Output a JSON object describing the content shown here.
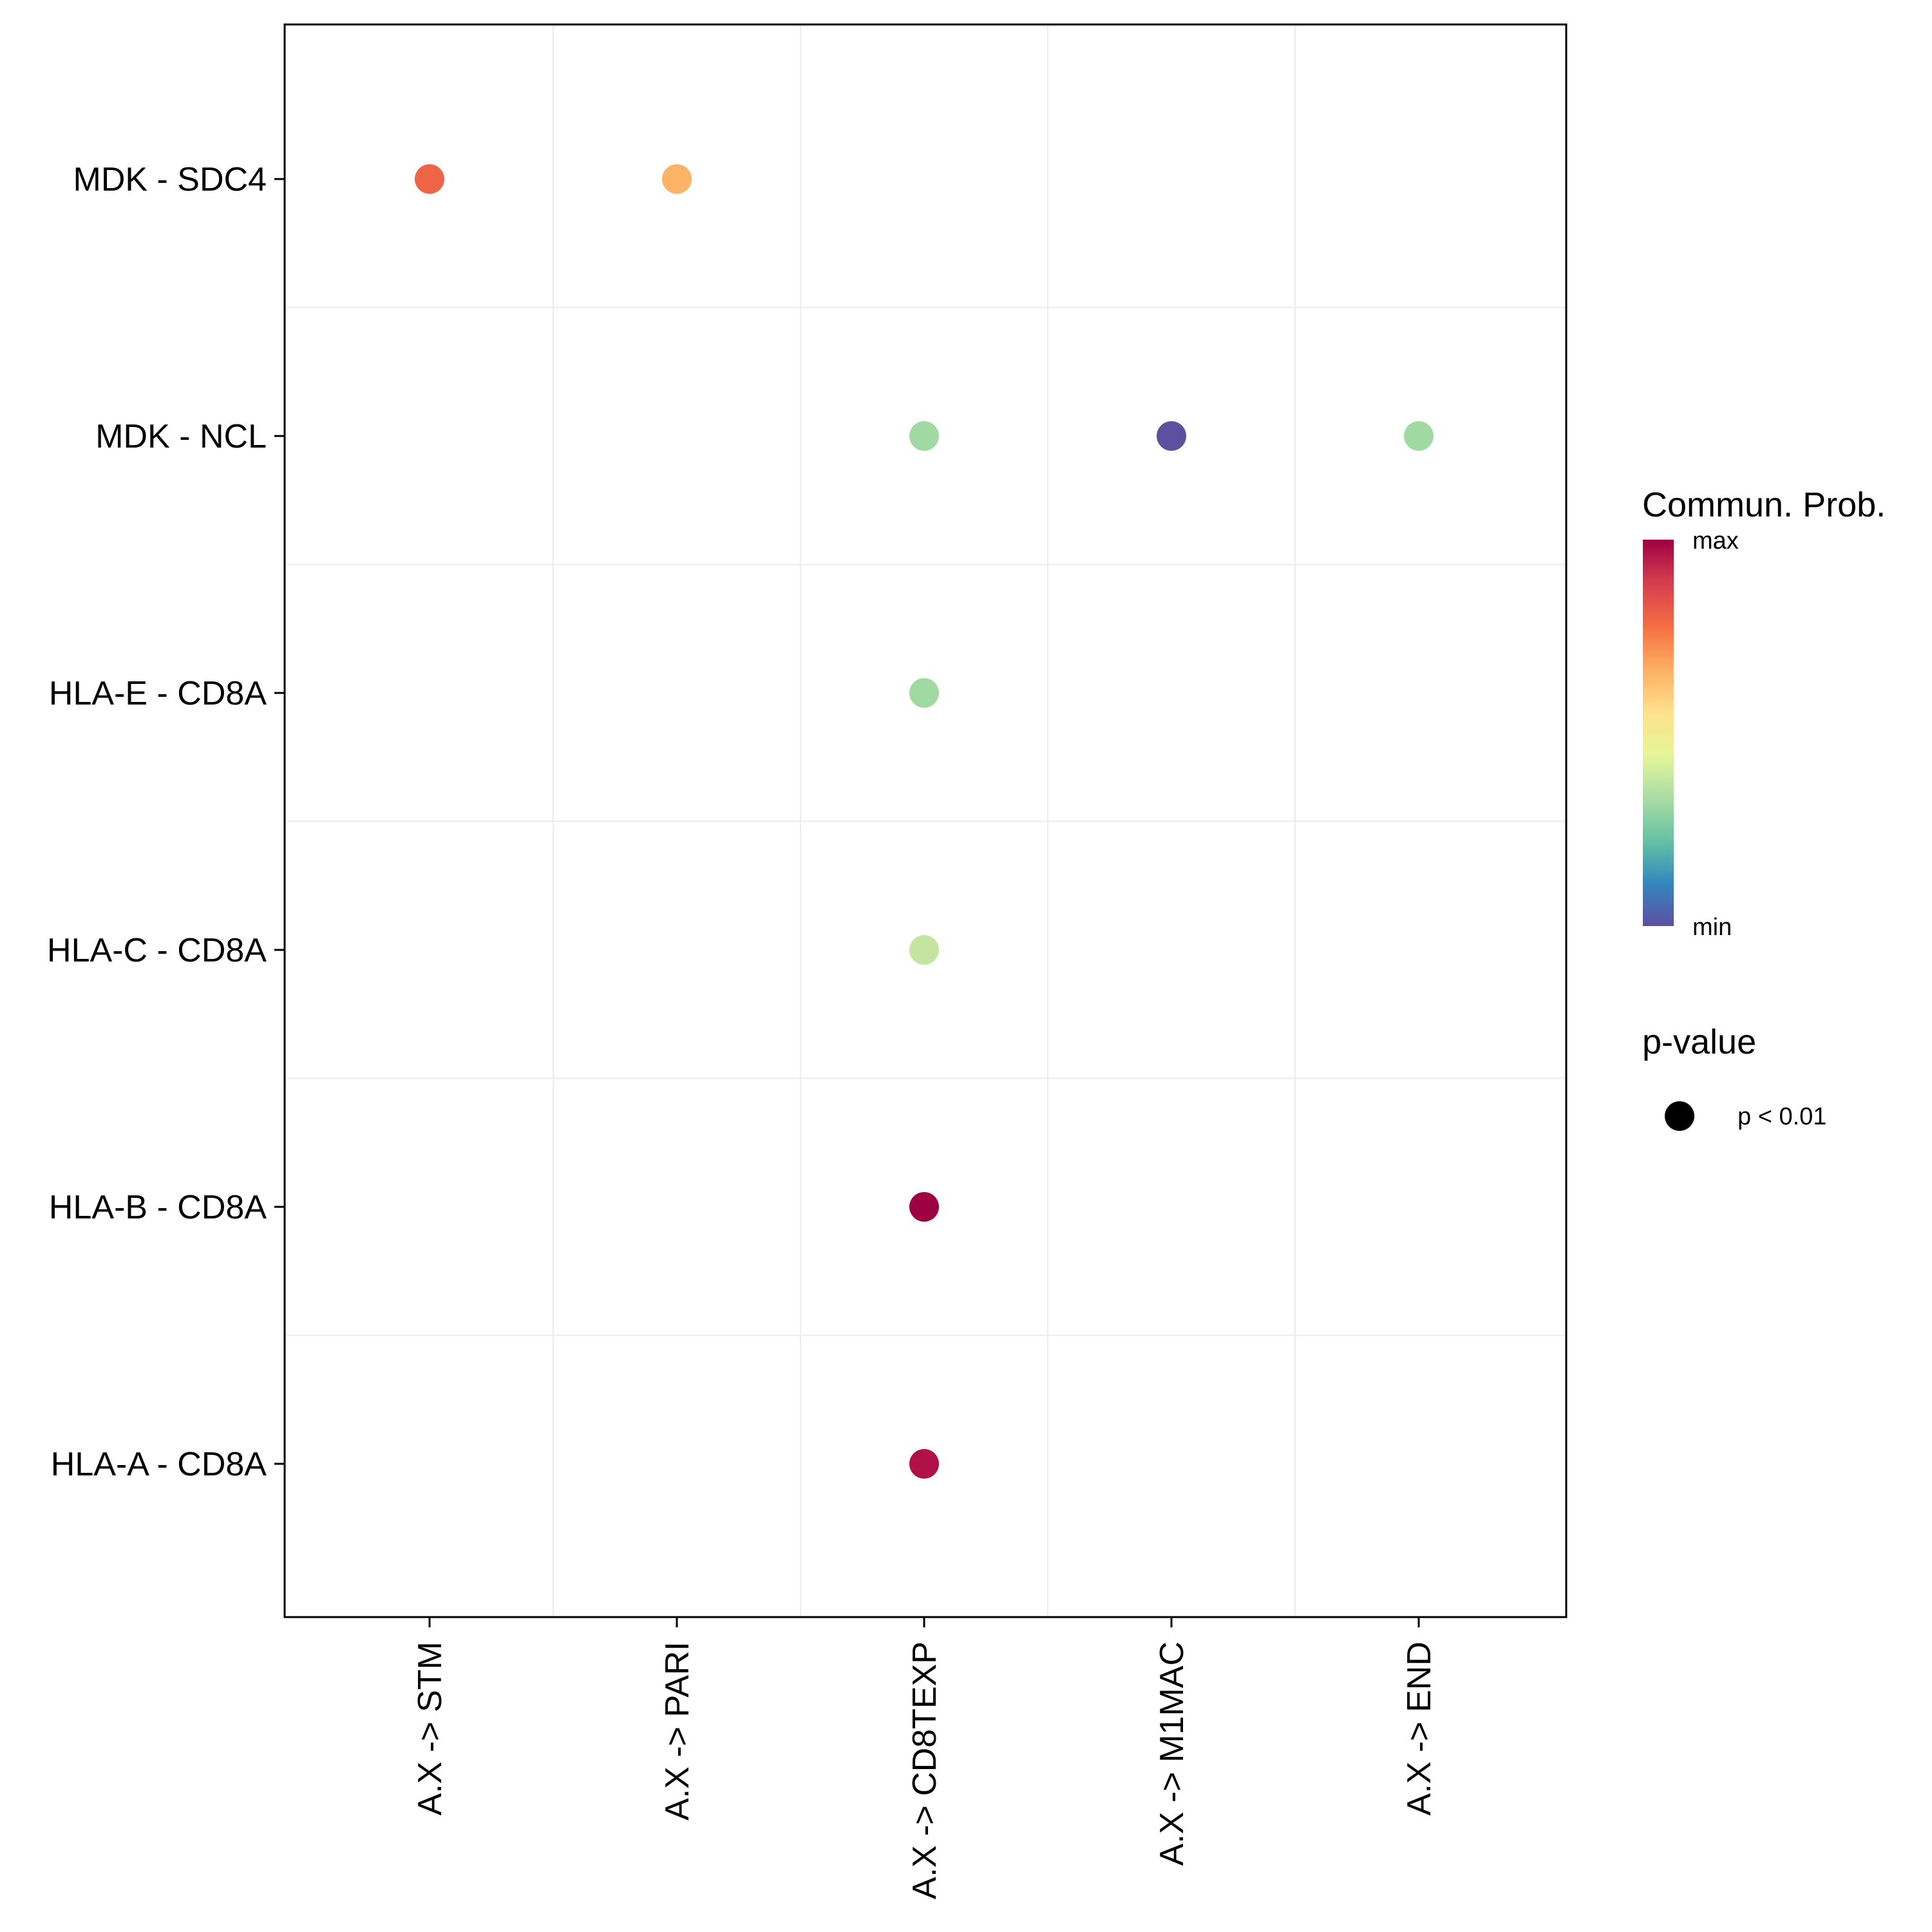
{
  "chart_data": {
    "type": "scatter",
    "subtype": "dot-plot",
    "x_categories": [
      "A.X -> STM",
      "A.X -> PARI",
      "A.X -> CD8TEXP",
      "A.X -> M1MAC",
      "A.X -> END"
    ],
    "y_categories": [
      "MDK - SDC4",
      "MDK - NCL",
      "HLA-E - CD8A",
      "HLA-C - CD8A",
      "HLA-B - CD8A",
      "HLA-A - CD8A"
    ],
    "points": [
      {
        "x": "A.X -> STM",
        "y": "MDK - SDC4",
        "prob": 0.87,
        "color": "#EE6447"
      },
      {
        "x": "A.X -> PARI",
        "y": "MDK - SDC4",
        "prob": 0.74,
        "color": "#FDB365"
      },
      {
        "x": "A.X -> CD8TEXP",
        "y": "MDK - NCL",
        "prob": 0.36,
        "color": "#A1D9A3"
      },
      {
        "x": "A.X -> M1MAC",
        "y": "MDK - NCL",
        "prob": 0.0,
        "color": "#5E50A1"
      },
      {
        "x": "A.X -> END",
        "y": "MDK - NCL",
        "prob": 0.36,
        "color": "#A1D9A3"
      },
      {
        "x": "A.X -> CD8TEXP",
        "y": "HLA-E - CD8A",
        "prob": 0.36,
        "color": "#A1D9A3"
      },
      {
        "x": "A.X -> CD8TEXP",
        "y": "HLA-C - CD8A",
        "prob": 0.45,
        "color": "#C4E5A0"
      },
      {
        "x": "A.X -> CD8TEXP",
        "y": "HLA-B - CD8A",
        "prob": 1.0,
        "color": "#9E0142"
      },
      {
        "x": "A.X -> CD8TEXP",
        "y": "HLA-A - CD8A",
        "prob": 0.97,
        "color": "#B01146"
      }
    ],
    "grid": true,
    "legend": {
      "position": "right",
      "color_title": "Commun. Prob.",
      "color_max_label": "max",
      "color_min_label": "min",
      "color_scale": [
        "#9E0142",
        "#D53E4F",
        "#F46D43",
        "#FDAE61",
        "#FEE08B",
        "#E6F598",
        "#ABDDA4",
        "#66C2A5",
        "#3288BD",
        "#5E4FA2"
      ],
      "size_title": "p-value",
      "size_entry": "p < 0.01"
    }
  }
}
